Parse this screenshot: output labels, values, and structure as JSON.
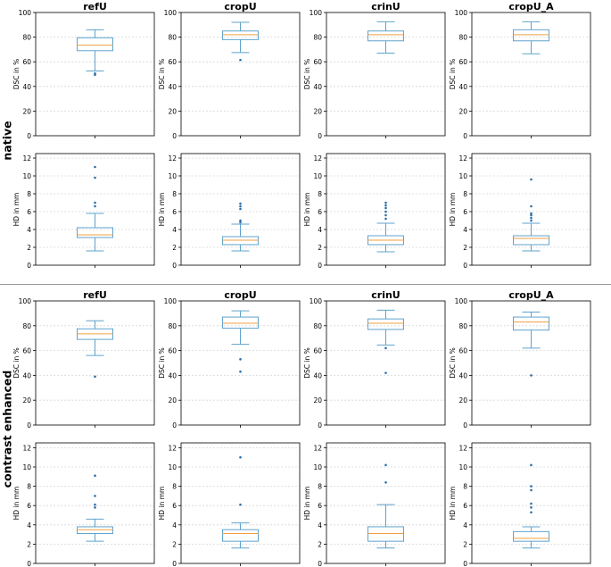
{
  "rows": [
    {
      "label": "native"
    },
    {
      "label": "contrast enhanced"
    }
  ],
  "colors": {
    "box": "#5fa3cc",
    "median": "#f0a040",
    "flier": "#2b6fa8",
    "grid": "#d6d6d6",
    "axis": "#000000"
  },
  "chart_data": [
    {
      "type": "box",
      "row": "native",
      "title": "refU",
      "ylabel": "DSC in %",
      "ylim": [
        0,
        100
      ],
      "yticks": [
        0,
        20,
        40,
        60,
        80,
        100
      ],
      "grid": true,
      "box": {
        "whisker_low": 52.5,
        "q1": 69,
        "median": 73.5,
        "q3": 79.5,
        "whisker_high": 86
      },
      "fliers": [
        49.5,
        50.5
      ]
    },
    {
      "type": "box",
      "row": "native",
      "title": "cropU",
      "ylabel": "DSC in %",
      "ylim": [
        0,
        100
      ],
      "yticks": [
        0,
        20,
        40,
        60,
        80,
        100
      ],
      "grid": true,
      "box": {
        "whisker_low": 67.5,
        "q1": 78,
        "median": 82,
        "q3": 85,
        "whisker_high": 92
      },
      "fliers": [
        61.5
      ]
    },
    {
      "type": "box",
      "row": "native",
      "title": "crinU",
      "ylabel": "DSC in %",
      "ylim": [
        0,
        100
      ],
      "yticks": [
        0,
        20,
        40,
        60,
        80,
        100
      ],
      "grid": true,
      "box": {
        "whisker_low": 67,
        "q1": 77,
        "median": 82,
        "q3": 85,
        "whisker_high": 92.5
      },
      "fliers": []
    },
    {
      "type": "box",
      "row": "native",
      "title": "cropU_A",
      "ylabel": "DSC in %",
      "ylim": [
        0,
        100
      ],
      "yticks": [
        0,
        20,
        40,
        60,
        80,
        100
      ],
      "grid": true,
      "box": {
        "whisker_low": 66.5,
        "q1": 77,
        "median": 82,
        "q3": 86,
        "whisker_high": 92.5
      },
      "fliers": []
    },
    {
      "type": "box",
      "row": "native",
      "title": "",
      "ylabel": "HD in mm",
      "ylim": [
        0,
        12.5
      ],
      "yticks": [
        0,
        2,
        4,
        6,
        8,
        10,
        12
      ],
      "grid": true,
      "box": {
        "whisker_low": 1.6,
        "q1": 3.1,
        "median": 3.4,
        "q3": 4.2,
        "whisker_high": 5.8
      },
      "fliers": [
        6.6,
        7.0,
        9.8,
        11.0
      ]
    },
    {
      "type": "box",
      "row": "native",
      "title": "",
      "ylabel": "HD in mm",
      "ylim": [
        0,
        12.5
      ],
      "yticks": [
        0,
        2,
        4,
        6,
        8,
        10,
        12
      ],
      "grid": true,
      "box": {
        "whisker_low": 1.6,
        "q1": 2.3,
        "median": 2.8,
        "q3": 3.2,
        "whisker_high": 4.6
      },
      "fliers": [
        4.8,
        5.0,
        6.3,
        6.6,
        6.9
      ]
    },
    {
      "type": "box",
      "row": "native",
      "title": "",
      "ylabel": "HD in mm",
      "ylim": [
        0,
        12.5
      ],
      "yticks": [
        0,
        2,
        4,
        6,
        8,
        10,
        12
      ],
      "grid": true,
      "box": {
        "whisker_low": 1.5,
        "q1": 2.3,
        "median": 2.8,
        "q3": 3.3,
        "whisker_high": 4.7
      },
      "fliers": [
        5.2,
        5.6,
        6.0,
        6.4,
        6.7,
        7.0
      ]
    },
    {
      "type": "box",
      "row": "native",
      "title": "",
      "ylabel": "HD in mm",
      "ylim": [
        0,
        12.5
      ],
      "yticks": [
        0,
        2,
        4,
        6,
        8,
        10,
        12
      ],
      "grid": true,
      "box": {
        "whisker_low": 1.6,
        "q1": 2.3,
        "median": 3.0,
        "q3": 3.3,
        "whisker_high": 4.7
      },
      "fliers": [
        5.0,
        5.3,
        5.6,
        5.8,
        6.6,
        9.6
      ]
    },
    {
      "type": "box",
      "row": "contrast enhanced",
      "title": "refU",
      "ylabel": "DSC in %",
      "ylim": [
        0,
        100
      ],
      "yticks": [
        0,
        20,
        40,
        60,
        80,
        100
      ],
      "grid": true,
      "box": {
        "whisker_low": 56,
        "q1": 69,
        "median": 73.5,
        "q3": 77.5,
        "whisker_high": 84
      },
      "fliers": [
        39
      ]
    },
    {
      "type": "box",
      "row": "contrast enhanced",
      "title": "cropU",
      "ylabel": "DSC in %",
      "ylim": [
        0,
        100
      ],
      "yticks": [
        0,
        20,
        40,
        60,
        80,
        100
      ],
      "grid": true,
      "box": {
        "whisker_low": 65,
        "q1": 78,
        "median": 82,
        "q3": 87,
        "whisker_high": 92
      },
      "fliers": [
        43,
        53
      ]
    },
    {
      "type": "box",
      "row": "contrast enhanced",
      "title": "crinU",
      "ylabel": "DSC in %",
      "ylim": [
        0,
        100
      ],
      "yticks": [
        0,
        20,
        40,
        60,
        80,
        100
      ],
      "grid": true,
      "box": {
        "whisker_low": 64.5,
        "q1": 77,
        "median": 82,
        "q3": 85.5,
        "whisker_high": 92.5
      },
      "fliers": [
        42,
        62
      ]
    },
    {
      "type": "box",
      "row": "contrast enhanced",
      "title": "cropU_A",
      "ylabel": "DSC in %",
      "ylim": [
        0,
        100
      ],
      "yticks": [
        0,
        20,
        40,
        60,
        80,
        100
      ],
      "grid": true,
      "box": {
        "whisker_low": 62,
        "q1": 76.5,
        "median": 83,
        "q3": 87,
        "whisker_high": 91
      },
      "fliers": [
        40
      ]
    },
    {
      "type": "box",
      "row": "contrast enhanced",
      "title": "",
      "ylabel": "HD in mm",
      "ylim": [
        0,
        12.5
      ],
      "yticks": [
        0,
        2,
        4,
        6,
        8,
        10,
        12
      ],
      "grid": true,
      "box": {
        "whisker_low": 2.3,
        "q1": 3.1,
        "median": 3.5,
        "q3": 3.8,
        "whisker_high": 4.6
      },
      "fliers": [
        5.8,
        6.1,
        7.0,
        9.1
      ]
    },
    {
      "type": "box",
      "row": "contrast enhanced",
      "title": "",
      "ylabel": "HD in mm",
      "ylim": [
        0,
        12.5
      ],
      "yticks": [
        0,
        2,
        4,
        6,
        8,
        10,
        12
      ],
      "grid": true,
      "box": {
        "whisker_low": 1.6,
        "q1": 2.3,
        "median": 3.1,
        "q3": 3.5,
        "whisker_high": 4.2
      },
      "fliers": [
        6.1,
        11.0
      ]
    },
    {
      "type": "box",
      "row": "contrast enhanced",
      "title": "",
      "ylabel": "HD in mm",
      "ylim": [
        0,
        12.5
      ],
      "yticks": [
        0,
        2,
        4,
        6,
        8,
        10,
        12
      ],
      "grid": true,
      "box": {
        "whisker_low": 1.6,
        "q1": 2.3,
        "median": 3.1,
        "q3": 3.8,
        "whisker_high": 6.1
      },
      "fliers": [
        8.4,
        10.2
      ]
    },
    {
      "type": "box",
      "row": "contrast enhanced",
      "title": "",
      "ylabel": "HD in mm",
      "ylim": [
        0,
        12.5
      ],
      "yticks": [
        0,
        2,
        4,
        6,
        8,
        10,
        12
      ],
      "grid": true,
      "box": {
        "whisker_low": 1.6,
        "q1": 2.3,
        "median": 2.6,
        "q3": 3.3,
        "whisker_high": 3.8
      },
      "fliers": [
        5.3,
        5.8,
        6.2,
        7.6,
        8.0,
        10.2
      ]
    }
  ]
}
